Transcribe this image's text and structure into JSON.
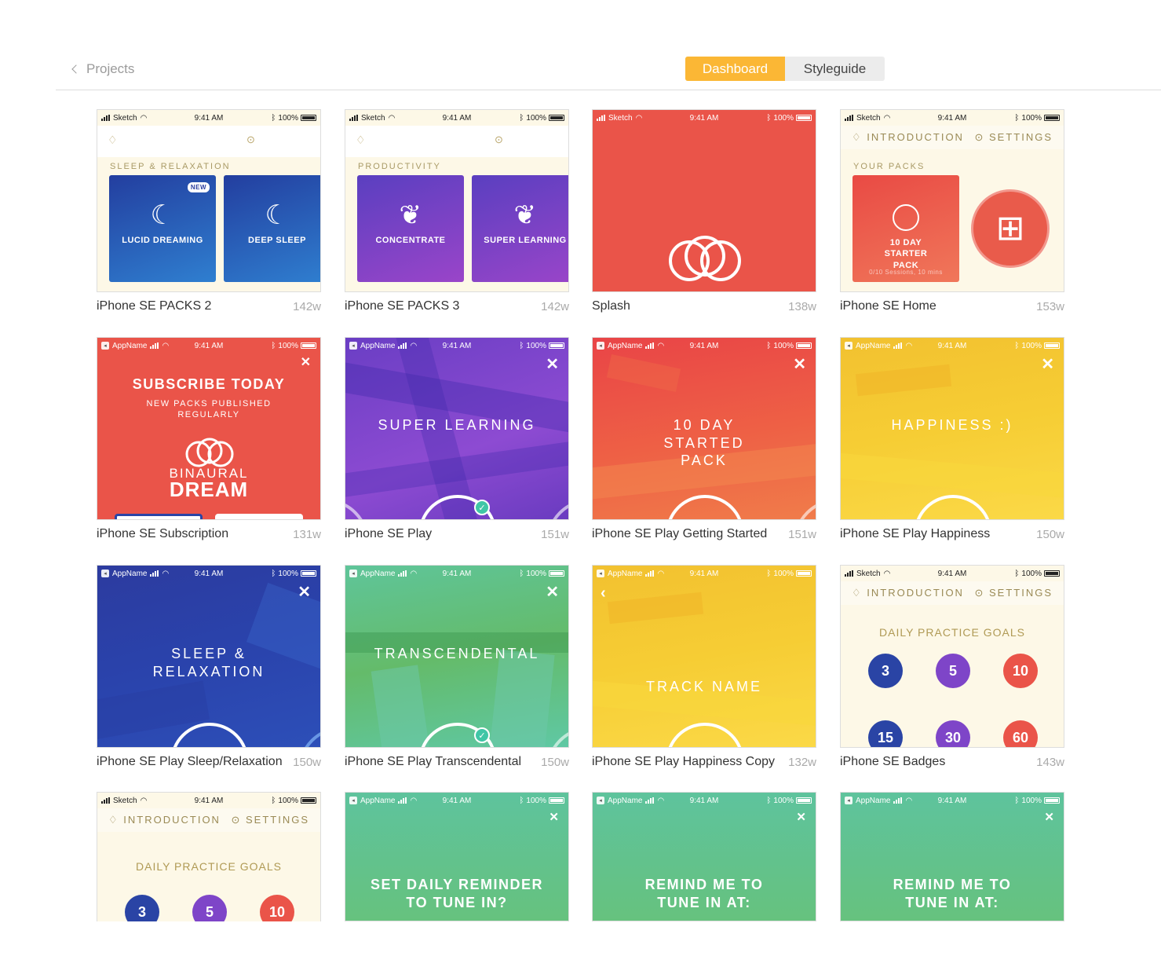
{
  "header": {
    "back_label": "Projects",
    "tabs": [
      "Dashboard",
      "Styleguide"
    ],
    "active_tab": "Dashboard"
  },
  "status": {
    "sketch": "Sketch",
    "app": "AppName",
    "time": "9:41 AM",
    "battery": "100%"
  },
  "labels": {
    "sleep_relax": "SLEEP & RELAXATION",
    "new": "NEW",
    "lucid": "LUCID DREAMING",
    "deep": "DEEP SLEEP",
    "productivity": "PRODUCTIVITY",
    "concentrate": "CONCENTRATE",
    "super_learning_pack": "SUPER LEARNING",
    "introduction": "INTRODUCTION",
    "settings": "SETTINGS",
    "your_packs": "YOUR PACKS",
    "starter_pack": "10 DAY STARTER PACK",
    "sessions": "0/10 Sessions, 10 mins",
    "subscribe": "SUBSCRIBE TODAY",
    "subscribe_sub": "NEW PACKS PUBLISHED REGULARLY",
    "binaural": "BINAURAL",
    "dream": "DREAM",
    "super_learning": "SUPER LEARNING",
    "ten_day": "10 DAY STARTED PACK",
    "happiness": "HAPPINESS :)",
    "sleep_relaxation": "SLEEP & RELAXATION",
    "transcendental": "TRANSCENDENTAL",
    "track_name": "TRACK NAME",
    "daily_goals": "DAILY PRACTICE GOALS",
    "set_reminder": "SET DAILY REMINDER TO TUNE IN?",
    "remind_me": "REMIND ME TO TUNE IN AT:"
  },
  "badges": {
    "row1": [
      "3",
      "5",
      "10"
    ],
    "row2": [
      "15",
      "30",
      "60"
    ]
  },
  "artboards": [
    {
      "name": "iPhone SE PACKS 2",
      "width": "142w"
    },
    {
      "name": "iPhone SE PACKS 3",
      "width": "142w"
    },
    {
      "name": "Splash",
      "width": "138w"
    },
    {
      "name": "iPhone SE Home",
      "width": "153w"
    },
    {
      "name": "iPhone SE Subscription",
      "width": "131w"
    },
    {
      "name": "iPhone SE Play",
      "width": "151w"
    },
    {
      "name": "iPhone SE Play Getting Started",
      "width": "151w"
    },
    {
      "name": "iPhone SE Play Happiness",
      "width": "150w"
    },
    {
      "name": "iPhone SE Play Sleep/Relaxation",
      "width": "150w"
    },
    {
      "name": "iPhone SE Play Transcendental",
      "width": "150w"
    },
    {
      "name": "iPhone SE Play Happiness Copy",
      "width": "132w"
    },
    {
      "name": "iPhone SE Badges",
      "width": "143w"
    }
  ],
  "colors": {
    "accent": "#fbb735",
    "red": "#ea5449",
    "purple": "#7e45c8",
    "blue": "#2a44a5",
    "yellow": "#f6cb2e",
    "green": "#5ec39d"
  }
}
